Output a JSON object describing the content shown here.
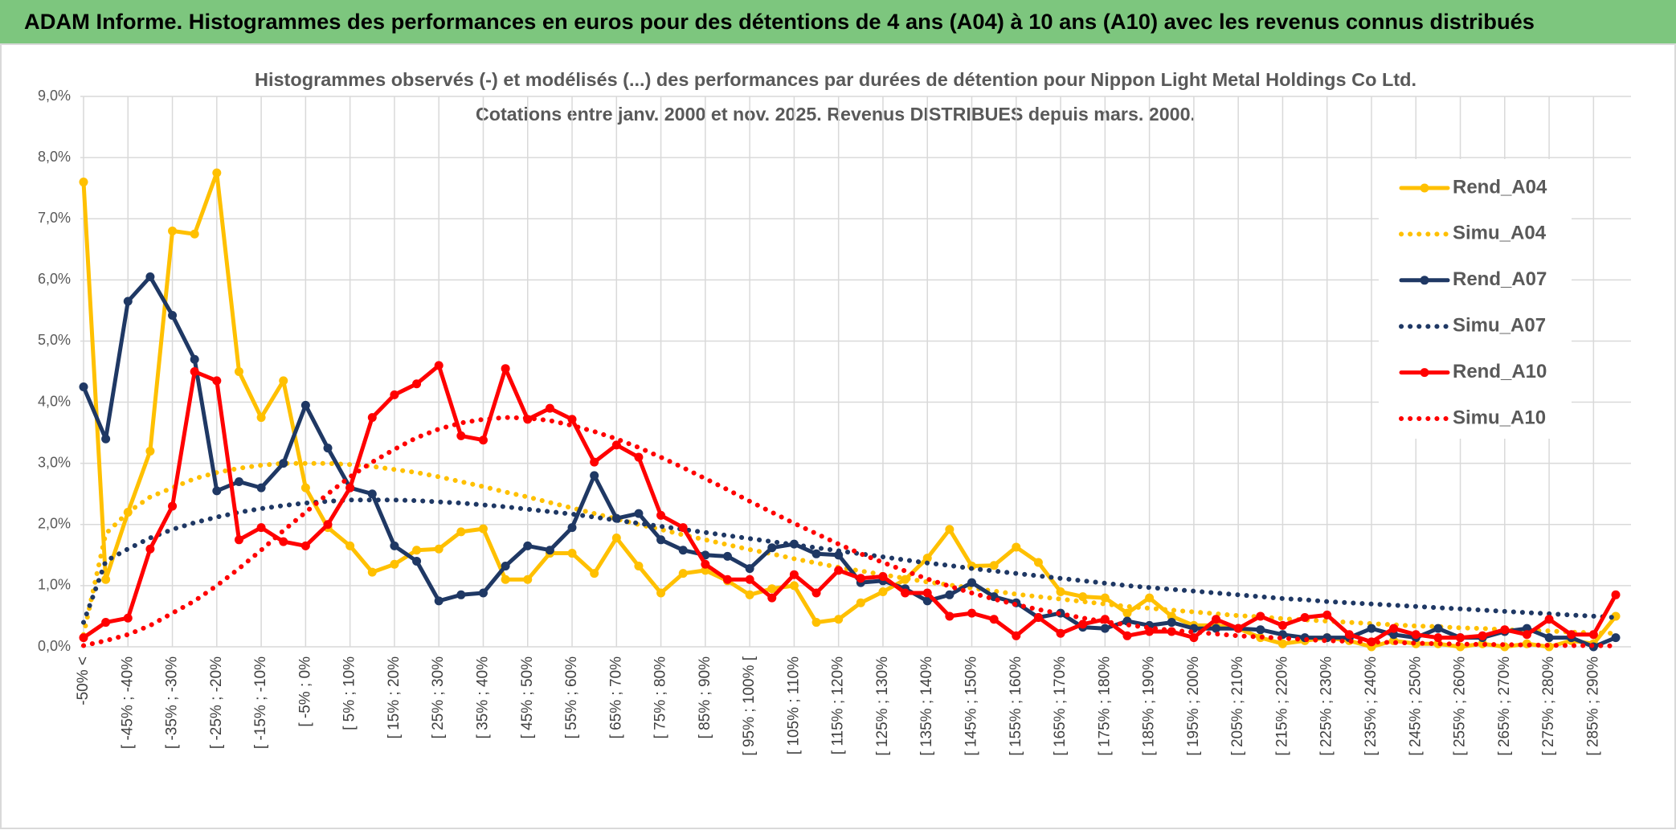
{
  "header": {
    "title": "ADAM Informe. Histogrammes des performances en euros pour des détentions de 4 ans (A04) à 10 ans (A10) avec les revenus connus distribués"
  },
  "chart_data": {
    "type": "line",
    "title": "Histogrammes observés (-) et modélisés (...) des performances par durées de détention pour Nippon Light Metal Holdings Co Ltd.",
    "subtitle": "Cotations entre janv. 2000 et nov. 2025. Revenus DISTRIBUES depuis mars. 2000.",
    "categories": [
      "-50% <",
      null,
      "[ -45% ; -40%",
      null,
      "[ -35% ; -30%",
      null,
      "[ -25% ; -20%",
      null,
      "[ -15% ; -10%",
      null,
      "[ -5% ; 0%",
      null,
      "[ 5% ; 10%",
      null,
      "[ 15% ; 20%",
      null,
      "[ 25% ; 30%",
      null,
      "[ 35% ; 40%",
      null,
      "[ 45% ; 50%",
      null,
      "[ 55% ; 60%",
      null,
      "[ 65% ; 70%",
      null,
      "[ 75% ; 80%",
      null,
      "[ 85% ; 90%",
      null,
      "[ 95% ; 100% [",
      null,
      "[ 105% ; 110%",
      null,
      "[ 115% ; 120%",
      null,
      "[ 125% ; 130%",
      null,
      "[ 135% ; 140%",
      null,
      "[ 145% ; 150%",
      null,
      "[ 155% ; 160%",
      null,
      "[ 165% ; 170%",
      null,
      "[ 175% ; 180%",
      null,
      "[ 185% ; 190%",
      null,
      "[ 195% ; 200%",
      null,
      "[ 205% ; 210%",
      null,
      "[ 215% ; 220%",
      null,
      "[ 225% ; 230%",
      null,
      "[ 235% ; 240%",
      null,
      "[ 245% ; 250%",
      null,
      "[ 255% ; 260%",
      null,
      "[ 265% ; 270%",
      null,
      "[ 275% ; 280%",
      null,
      "[ 285% ; 290%",
      null
    ],
    "series": [
      {
        "name": "Rend_A04",
        "color": "#ffc000",
        "style": "solid",
        "values": [
          7.6,
          1.1,
          2.2,
          3.2,
          6.8,
          6.75,
          7.75,
          4.5,
          3.75,
          4.35,
          2.6,
          1.95,
          1.65,
          1.22,
          1.35,
          1.58,
          1.6,
          1.88,
          1.93,
          1.1,
          1.1,
          1.53,
          1.53,
          1.2,
          1.78,
          1.32,
          0.88,
          1.2,
          1.25,
          1.08,
          0.85,
          0.95,
          1.0,
          0.4,
          0.45,
          0.72,
          0.9,
          1.1,
          1.45,
          1.92,
          1.32,
          1.33,
          1.63,
          1.38,
          0.9,
          0.82,
          0.8,
          0.55,
          0.8,
          0.5,
          0.35,
          0.35,
          0.3,
          0.15,
          0.05,
          0.1,
          0.15,
          0.1,
          0.0,
          0.1,
          0.05,
          0.05,
          0.0,
          0.05,
          0.0,
          0.05,
          0.0,
          0.1,
          0.05,
          0.5
        ]
      },
      {
        "name": "Simu_A04",
        "color": "#ffc000",
        "style": "dotted",
        "values": [
          0.2,
          1.85,
          2.2,
          2.45,
          2.6,
          2.75,
          2.85,
          2.92,
          2.97,
          3.0,
          3.0,
          3.0,
          2.98,
          2.95,
          2.9,
          2.85,
          2.78,
          2.7,
          2.62,
          2.53,
          2.45,
          2.36,
          2.27,
          2.18,
          2.09,
          2.0,
          1.92,
          1.83,
          1.75,
          1.67,
          1.59,
          1.52,
          1.44,
          1.37,
          1.3,
          1.24,
          1.18,
          1.12,
          1.06,
          1.01,
          0.96,
          0.91,
          0.86,
          0.82,
          0.78,
          0.74,
          0.7,
          0.66,
          0.63,
          0.6,
          0.57,
          0.54,
          0.51,
          0.49,
          0.46,
          0.44,
          0.42,
          0.4,
          0.38,
          0.36,
          0.34,
          0.33,
          0.31,
          0.3,
          0.28,
          0.27,
          0.26,
          0.24,
          0.23,
          0.22
        ]
      },
      {
        "name": "Rend_A07",
        "color": "#1f3864",
        "style": "solid",
        "values": [
          4.25,
          3.4,
          5.65,
          6.05,
          5.42,
          4.7,
          2.55,
          2.7,
          2.6,
          3.0,
          3.95,
          3.25,
          2.6,
          2.5,
          1.65,
          1.4,
          0.75,
          0.85,
          0.88,
          1.32,
          1.65,
          1.58,
          1.95,
          2.8,
          2.1,
          2.18,
          1.75,
          1.58,
          1.5,
          1.48,
          1.28,
          1.62,
          1.68,
          1.52,
          1.5,
          1.05,
          1.08,
          0.95,
          0.75,
          0.85,
          1.05,
          0.82,
          0.72,
          0.48,
          0.55,
          0.32,
          0.3,
          0.42,
          0.35,
          0.4,
          0.3,
          0.3,
          0.3,
          0.28,
          0.2,
          0.15,
          0.15,
          0.15,
          0.3,
          0.2,
          0.15,
          0.3,
          0.15,
          0.15,
          0.25,
          0.3,
          0.15,
          0.15,
          0.0,
          0.15
        ]
      },
      {
        "name": "Simu_A07",
        "color": "#1f3864",
        "style": "dotted",
        "values": [
          0.4,
          1.4,
          1.6,
          1.78,
          1.92,
          2.03,
          2.12,
          2.2,
          2.26,
          2.31,
          2.35,
          2.38,
          2.4,
          2.4,
          2.4,
          2.39,
          2.37,
          2.35,
          2.32,
          2.29,
          2.25,
          2.21,
          2.17,
          2.12,
          2.07,
          2.02,
          1.97,
          1.92,
          1.87,
          1.82,
          1.77,
          1.72,
          1.67,
          1.62,
          1.57,
          1.52,
          1.47,
          1.42,
          1.37,
          1.33,
          1.28,
          1.24,
          1.2,
          1.16,
          1.12,
          1.08,
          1.04,
          1.0,
          0.97,
          0.94,
          0.91,
          0.88,
          0.85,
          0.82,
          0.79,
          0.77,
          0.74,
          0.72,
          0.7,
          0.68,
          0.66,
          0.64,
          0.62,
          0.6,
          0.58,
          0.56,
          0.54,
          0.52,
          0.5,
          0.48
        ]
      },
      {
        "name": "Rend_A10",
        "color": "#ff0000",
        "style": "solid",
        "values": [
          0.15,
          0.4,
          0.47,
          1.6,
          2.3,
          4.5,
          4.35,
          1.75,
          1.95,
          1.72,
          1.65,
          2.0,
          2.6,
          3.75,
          4.12,
          4.3,
          4.6,
          3.45,
          3.38,
          4.55,
          3.72,
          3.9,
          3.72,
          3.02,
          3.3,
          3.1,
          2.15,
          1.95,
          1.35,
          1.1,
          1.1,
          0.8,
          1.18,
          0.88,
          1.25,
          1.12,
          1.15,
          0.88,
          0.88,
          0.5,
          0.55,
          0.45,
          0.18,
          0.48,
          0.22,
          0.37,
          0.45,
          0.18,
          0.25,
          0.25,
          0.15,
          0.45,
          0.3,
          0.5,
          0.35,
          0.48,
          0.52,
          0.2,
          0.08,
          0.3,
          0.2,
          0.15,
          0.15,
          0.18,
          0.28,
          0.2,
          0.45,
          0.2,
          0.2,
          0.85
        ]
      },
      {
        "name": "Simu_A10",
        "color": "#ff0000",
        "style": "dotted",
        "values": [
          0.02,
          0.1,
          0.2,
          0.35,
          0.55,
          0.75,
          1.0,
          1.28,
          1.58,
          1.9,
          2.2,
          2.5,
          2.78,
          3.02,
          3.23,
          3.42,
          3.56,
          3.66,
          3.72,
          3.75,
          3.74,
          3.7,
          3.62,
          3.52,
          3.4,
          3.26,
          3.1,
          2.93,
          2.75,
          2.57,
          2.38,
          2.2,
          2.02,
          1.85,
          1.68,
          1.52,
          1.38,
          1.24,
          1.11,
          0.99,
          0.88,
          0.78,
          0.69,
          0.61,
          0.54,
          0.47,
          0.41,
          0.36,
          0.31,
          0.27,
          0.24,
          0.21,
          0.18,
          0.16,
          0.14,
          0.12,
          0.1,
          0.09,
          0.08,
          0.07,
          0.06,
          0.05,
          0.045,
          0.04,
          0.035,
          0.03,
          0.025,
          0.02,
          0.02,
          0.015
        ]
      }
    ],
    "ylim": [
      0,
      9
    ],
    "yticks": [
      {
        "value": 0,
        "label": "0,0%"
      },
      {
        "value": 1,
        "label": "1,0%"
      },
      {
        "value": 2,
        "label": "2,0%"
      },
      {
        "value": 3,
        "label": "3,0%"
      },
      {
        "value": 4,
        "label": "4,0%"
      },
      {
        "value": 5,
        "label": "5,0%"
      },
      {
        "value": 6,
        "label": "6,0%"
      },
      {
        "value": 7,
        "label": "7,0%"
      },
      {
        "value": 8,
        "label": "8,0%"
      },
      {
        "value": 9,
        "label": "9,0%"
      }
    ],
    "grid": true,
    "legend": "right"
  }
}
